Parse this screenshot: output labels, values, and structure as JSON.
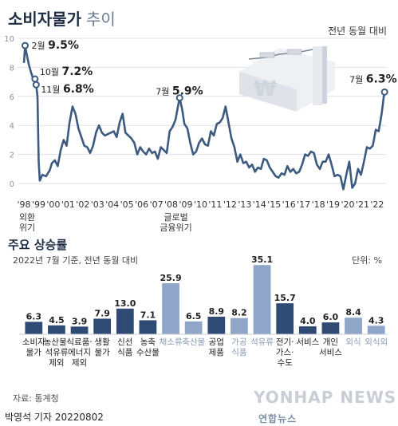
{
  "header": {
    "title": "소비자물가",
    "title_sub": "추이",
    "unit": "전년 동월 대비"
  },
  "chart_data": [
    {
      "type": "line",
      "title": "소비자물가 추이",
      "unit_label": "전년 동월 대비",
      "ylim": [
        0,
        10
      ],
      "yticks": [
        0,
        2,
        4,
        6,
        8,
        10
      ],
      "xlim": [
        1998.0,
        2022.6
      ],
      "xtick_labels": [
        "'98",
        "'99",
        "'00",
        "'01",
        "'02",
        "'03",
        "'04",
        "'05",
        "'06",
        "'07",
        "'08",
        "'09",
        "'10",
        "'11",
        "'12",
        "'13",
        "'14",
        "'15",
        "'16",
        "'17",
        "'18",
        "'19",
        "'20",
        "'21",
        "'22"
      ],
      "xtick_positions": [
        1998,
        1999,
        2000,
        2001,
        2002,
        2003,
        2004,
        2005,
        2006,
        2007,
        2008,
        2009,
        2010,
        2011,
        2012,
        2013,
        2014,
        2015,
        2016,
        2017,
        2018,
        2019,
        2020,
        2021,
        2022
      ],
      "line_color": "#3d5a80",
      "points": [
        [
          1998.0,
          8.3
        ],
        [
          1998.08,
          9.5
        ],
        [
          1998.17,
          9.0
        ],
        [
          1998.33,
          8.2
        ],
        [
          1998.5,
          7.6
        ],
        [
          1998.67,
          7.1
        ],
        [
          1998.75,
          7.2
        ],
        [
          1998.83,
          6.8
        ],
        [
          1998.92,
          6.0
        ],
        [
          1999.0,
          1.5
        ],
        [
          1999.08,
          0.2
        ],
        [
          1999.25,
          0.6
        ],
        [
          1999.5,
          0.5
        ],
        [
          1999.75,
          0.9
        ],
        [
          1999.9,
          1.4
        ],
        [
          2000.1,
          1.6
        ],
        [
          2000.3,
          1.2
        ],
        [
          2000.5,
          2.3
        ],
        [
          2000.7,
          3.0
        ],
        [
          2000.9,
          2.6
        ],
        [
          2001.1,
          4.2
        ],
        [
          2001.3,
          5.3
        ],
        [
          2001.5,
          4.8
        ],
        [
          2001.7,
          3.8
        ],
        [
          2001.9,
          3.2
        ],
        [
          2002.1,
          2.6
        ],
        [
          2002.3,
          2.5
        ],
        [
          2002.5,
          2.1
        ],
        [
          2002.7,
          2.6
        ],
        [
          2002.9,
          3.5
        ],
        [
          2003.1,
          4.0
        ],
        [
          2003.3,
          3.5
        ],
        [
          2003.5,
          3.3
        ],
        [
          2003.7,
          3.4
        ],
        [
          2003.9,
          3.5
        ],
        [
          2004.1,
          3.6
        ],
        [
          2004.3,
          3.2
        ],
        [
          2004.5,
          4.2
        ],
        [
          2004.7,
          4.8
        ],
        [
          2004.9,
          3.5
        ],
        [
          2005.1,
          3.3
        ],
        [
          2005.3,
          3.1
        ],
        [
          2005.5,
          2.8
        ],
        [
          2005.7,
          2.0
        ],
        [
          2005.9,
          2.5
        ],
        [
          2006.1,
          2.2
        ],
        [
          2006.3,
          2.0
        ],
        [
          2006.5,
          2.4
        ],
        [
          2006.7,
          2.1
        ],
        [
          2006.9,
          2.2
        ],
        [
          2007.1,
          1.7
        ],
        [
          2007.3,
          2.5
        ],
        [
          2007.5,
          2.3
        ],
        [
          2007.7,
          2.1
        ],
        [
          2007.9,
          3.6
        ],
        [
          2008.1,
          3.9
        ],
        [
          2008.3,
          4.4
        ],
        [
          2008.5,
          5.5
        ],
        [
          2008.58,
          5.9
        ],
        [
          2008.75,
          5.1
        ],
        [
          2008.9,
          4.1
        ],
        [
          2009.1,
          3.8
        ],
        [
          2009.3,
          2.8
        ],
        [
          2009.5,
          2.0
        ],
        [
          2009.7,
          2.2
        ],
        [
          2009.9,
          2.8
        ],
        [
          2010.1,
          3.1
        ],
        [
          2010.3,
          2.7
        ],
        [
          2010.5,
          2.6
        ],
        [
          2010.7,
          3.6
        ],
        [
          2010.9,
          3.3
        ],
        [
          2011.1,
          4.1
        ],
        [
          2011.3,
          4.2
        ],
        [
          2011.5,
          4.5
        ],
        [
          2011.7,
          5.3
        ],
        [
          2011.9,
          4.2
        ],
        [
          2012.1,
          3.1
        ],
        [
          2012.3,
          2.5
        ],
        [
          2012.5,
          1.5
        ],
        [
          2012.7,
          2.0
        ],
        [
          2012.9,
          1.4
        ],
        [
          2013.1,
          1.5
        ],
        [
          2013.3,
          1.1
        ],
        [
          2013.5,
          1.3
        ],
        [
          2013.7,
          0.8
        ],
        [
          2013.9,
          1.1
        ],
        [
          2014.1,
          1.0
        ],
        [
          2014.3,
          1.7
        ],
        [
          2014.5,
          1.6
        ],
        [
          2014.7,
          1.1
        ],
        [
          2014.9,
          0.8
        ],
        [
          2015.1,
          0.5
        ],
        [
          2015.3,
          0.4
        ],
        [
          2015.5,
          0.7
        ],
        [
          2015.7,
          0.6
        ],
        [
          2015.9,
          1.2
        ],
        [
          2016.1,
          0.8
        ],
        [
          2016.3,
          1.0
        ],
        [
          2016.5,
          0.7
        ],
        [
          2016.7,
          0.8
        ],
        [
          2016.9,
          1.3
        ],
        [
          2017.1,
          2.0
        ],
        [
          2017.3,
          1.9
        ],
        [
          2017.5,
          2.2
        ],
        [
          2017.7,
          2.1
        ],
        [
          2017.9,
          1.3
        ],
        [
          2018.1,
          1.0
        ],
        [
          2018.3,
          1.5
        ],
        [
          2018.5,
          1.5
        ],
        [
          2018.7,
          2.0
        ],
        [
          2018.9,
          1.3
        ],
        [
          2019.1,
          0.5
        ],
        [
          2019.3,
          0.6
        ],
        [
          2019.5,
          0.5
        ],
        [
          2019.7,
          -0.4
        ],
        [
          2019.9,
          0.6
        ],
        [
          2020.1,
          1.5
        ],
        [
          2020.3,
          -0.3
        ],
        [
          2020.5,
          0.0
        ],
        [
          2020.7,
          1.0
        ],
        [
          2020.9,
          0.6
        ],
        [
          2021.1,
          1.5
        ],
        [
          2021.3,
          2.5
        ],
        [
          2021.5,
          2.4
        ],
        [
          2021.7,
          2.6
        ],
        [
          2021.9,
          3.7
        ],
        [
          2022.1,
          3.6
        ],
        [
          2022.3,
          4.8
        ],
        [
          2022.45,
          6.0
        ],
        [
          2022.5,
          6.3
        ]
      ],
      "annotations": [
        {
          "x": 1998.08,
          "y": 9.5,
          "month": "2월",
          "value": "9.5%"
        },
        {
          "x": 1998.75,
          "y": 7.2,
          "month": "10월",
          "value": "7.2%"
        },
        {
          "x": 1998.83,
          "y": 6.8,
          "month": "11월",
          "value": "6.8%"
        },
        {
          "x": 2008.58,
          "y": 5.9,
          "month": "7월",
          "value": "5.9%"
        },
        {
          "x": 2022.5,
          "y": 6.3,
          "month": "7월",
          "value": "6.3%"
        }
      ],
      "events": [
        {
          "x": 1998,
          "lines": [
            "외환",
            "위기"
          ]
        },
        {
          "x": 2008,
          "lines": [
            "글로벌",
            "금융위기"
          ]
        }
      ]
    },
    {
      "type": "bar",
      "title": "주요 상승률",
      "subtitle": "2022년 7월 기준, 전년 동월 대비",
      "unit": "단위: %",
      "ylim": [
        0,
        36
      ],
      "categories": [
        {
          "lines": [
            "소비자",
            "물가"
          ]
        },
        {
          "lines": [
            "농산물·",
            "석유류",
            "제외"
          ]
        },
        {
          "lines": [
            "식료품·",
            "에너지",
            "제외"
          ]
        },
        {
          "lines": [
            "생활",
            "물가"
          ]
        },
        {
          "lines": [
            "신선",
            "식품"
          ]
        },
        {
          "lines": [
            "농축",
            "수산물"
          ]
        },
        {
          "lines": [
            "채소류"
          ]
        },
        {
          "lines": [
            "축산물"
          ]
        },
        {
          "lines": [
            "공업",
            "제품"
          ]
        },
        {
          "lines": [
            "가공",
            "식품"
          ]
        },
        {
          "lines": [
            "석유류"
          ]
        },
        {
          "lines": [
            "전기·",
            "가스·",
            "수도"
          ]
        },
        {
          "lines": [
            "서비스"
          ]
        },
        {
          "lines": [
            "개인",
            "서비스"
          ]
        },
        {
          "lines": [
            "외식"
          ]
        },
        {
          "lines": [
            "외식외"
          ]
        }
      ],
      "values": [
        6.3,
        4.5,
        3.9,
        7.9,
        13.0,
        7.1,
        25.9,
        6.5,
        8.9,
        8.2,
        35.1,
        15.7,
        4.0,
        6.0,
        8.4,
        4.3
      ],
      "value_labels": [
        "6.3",
        "4.5",
        "3.9",
        "7.9",
        "13.0",
        "7.1",
        "25.9",
        "6.5",
        "8.9",
        "8.2",
        "35.1",
        "15.7",
        "4.0",
        "6.0",
        "8.4",
        "4.3"
      ],
      "colors": [
        "#2f4b74",
        "#2f4b74",
        "#2f4b74",
        "#2f4b74",
        "#2f4b74",
        "#2f4b74",
        "#8fa6c8",
        "#8fa6c8",
        "#2f4b74",
        "#8fa6c8",
        "#8fa6c8",
        "#2f4b74",
        "#2f4b74",
        "#2f4b74",
        "#8fa6c8",
        "#8fa6c8"
      ],
      "label_colors": [
        "#222",
        "#222",
        "#222",
        "#222",
        "#222",
        "#222",
        "#8a9ab5",
        "#8a9ab5",
        "#222",
        "#8a9ab5",
        "#8a9ab5",
        "#222",
        "#222",
        "#222",
        "#8a9ab5",
        "#8a9ab5"
      ]
    }
  ],
  "section2": {
    "title": "주요 상승률",
    "subtitle": "2022년 7월 기준, 전년 동월 대비",
    "unit": "단위: %"
  },
  "source": "자료: 통계청",
  "footer": "박영석 기자 20220802",
  "logo": {
    "ko": "연합뉴스",
    "en": "YONHAP NEWS"
  }
}
